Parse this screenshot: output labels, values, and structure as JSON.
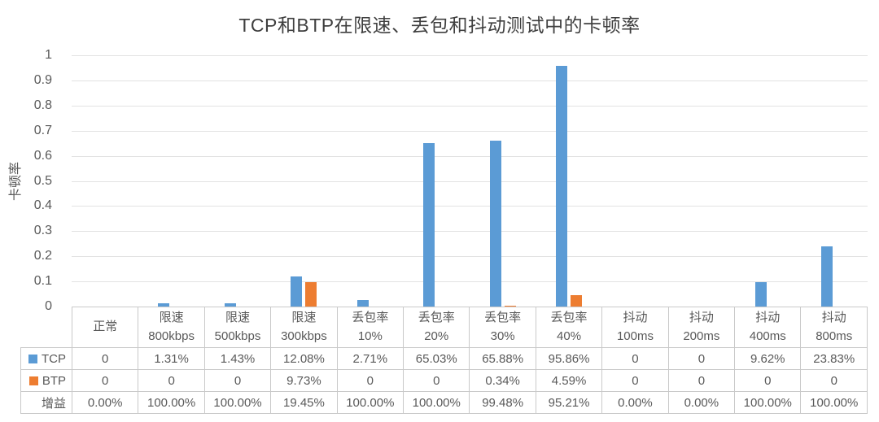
{
  "chart_data": {
    "type": "bar",
    "title": "TCP和BTP在限速、丢包和抖动测试中的卡顿率",
    "xlabel": "",
    "ylabel": "卡顿率",
    "ylim": [
      0,
      1
    ],
    "ytick_step": 0.1,
    "yticks": [
      "1",
      "0.9",
      "0.8",
      "0.7",
      "0.6",
      "0.5",
      "0.4",
      "0.3",
      "0.2",
      "0.1",
      "0"
    ],
    "grid": true,
    "legend_position": "data-table-left",
    "colors": {
      "tcp": "#5B9BD5",
      "btp": "#ED7D31",
      "gridline": "#E2E2E2",
      "table_border": "#C9C9C9",
      "text": "#595959"
    },
    "categories": [
      "正常",
      "限速\n800kbps",
      "限速\n500kbps",
      "限速\n300kbps",
      "丢包率\n10%",
      "丢包率\n20%",
      "丢包率\n30%",
      "丢包率\n40%",
      "抖动\n100ms",
      "抖动\n200ms",
      "抖动\n400ms",
      "抖动\n800ms"
    ],
    "series": [
      {
        "name": "TCP",
        "color": "#5B9BD5",
        "values": [
          0,
          0.0131,
          0.0143,
          0.1208,
          0.0271,
          0.6503,
          0.6588,
          0.9586,
          0,
          0,
          0.0962,
          0.2383
        ],
        "display": [
          "0",
          "1.31%",
          "1.43%",
          "12.08%",
          "2.71%",
          "65.03%",
          "65.88%",
          "95.86%",
          "0",
          "0",
          "9.62%",
          "23.83%"
        ]
      },
      {
        "name": "BTP",
        "color": "#ED7D31",
        "values": [
          0,
          0,
          0,
          0.0973,
          0,
          0,
          0.0034,
          0.0459,
          0,
          0,
          0,
          0
        ],
        "display": [
          "0",
          "0",
          "0",
          "9.73%",
          "0",
          "0",
          "0.34%",
          "4.59%",
          "0",
          "0",
          "0",
          "0"
        ]
      }
    ],
    "extra_rows": [
      {
        "name": "增益",
        "display": [
          "0.00%",
          "100.00%",
          "100.00%",
          "19.45%",
          "100.00%",
          "100.00%",
          "99.48%",
          "95.21%",
          "0.00%",
          "0.00%",
          "100.00%",
          "100.00%"
        ]
      }
    ]
  }
}
